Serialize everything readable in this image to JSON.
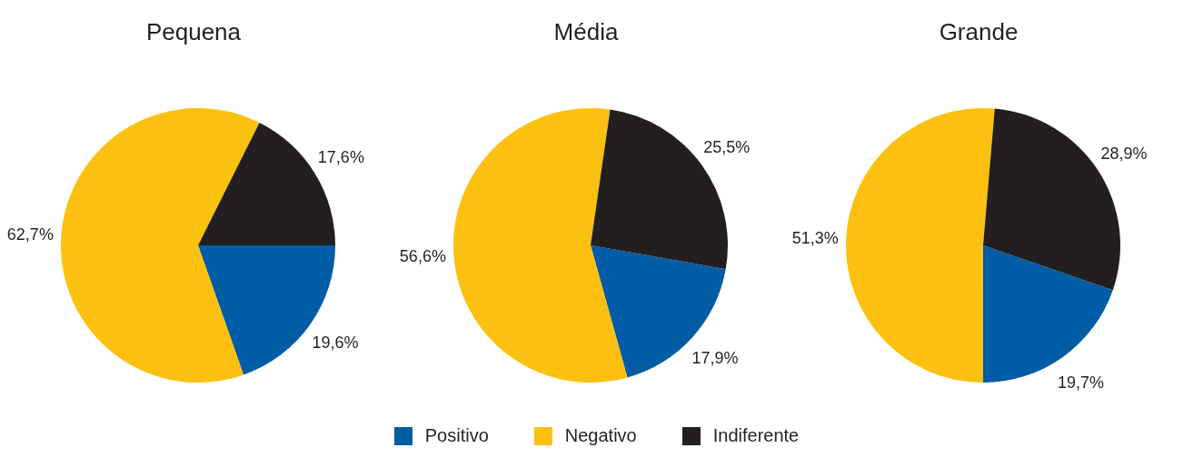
{
  "chart_data": [
    {
      "type": "pie",
      "title": "Pequena",
      "categories": [
        "Positivo",
        "Negativo",
        "Indiferente"
      ],
      "values": [
        19.6,
        62.7,
        17.6
      ],
      "colors": [
        "#005ca4",
        "#fcc010",
        "#231f20"
      ],
      "value_labels": [
        "19,6%",
        "62,7%",
        "17,6%"
      ],
      "legend": "bottom"
    },
    {
      "type": "pie",
      "title": "Média",
      "categories": [
        null,
        null,
        null
      ],
      "values": [
        17.9,
        56.6,
        25.5
      ],
      "colors": [
        "#005ca4",
        "#fcc010",
        "#231f20"
      ],
      "value_labels": [
        "17,9%",
        "56,6%",
        "25,5%"
      ]
    },
    {
      "type": "pie",
      "title": "Grande",
      "categories": [
        null,
        null,
        null
      ],
      "values": [
        19.7,
        51.3,
        28.9
      ],
      "colors": [
        "#005ca4",
        "#fcc010",
        "#231f20"
      ],
      "value_labels": [
        "19,7%",
        "51,3%",
        "28,9%"
      ]
    }
  ]
}
